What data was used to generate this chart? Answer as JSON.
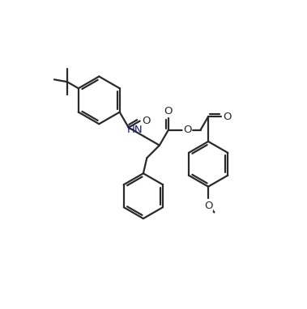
{
  "background_color": "#ffffff",
  "line_color": "#2a2a2a",
  "line_width": 1.6,
  "font_size": 9.5,
  "hn_color": "#1a1a6e",
  "fig_width": 3.79,
  "fig_height": 3.82,
  "dpi": 100,
  "xlim": [
    0,
    10
  ],
  "ylim": [
    0,
    10
  ]
}
